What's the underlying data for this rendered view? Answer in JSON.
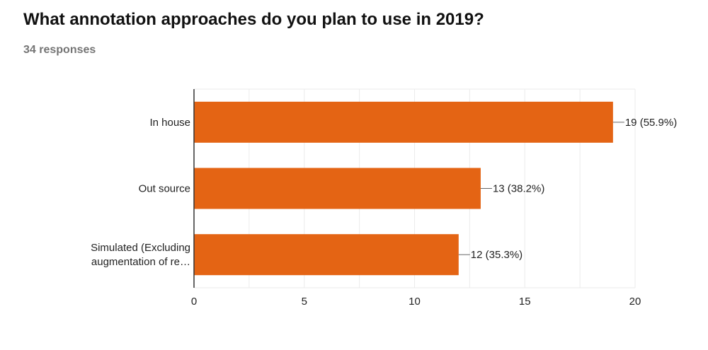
{
  "header": {
    "title": "What annotation approaches do you plan to use in 2019?",
    "responses": "34 responses"
  },
  "chart_data": {
    "type": "bar",
    "orientation": "horizontal",
    "categories": [
      [
        "In house"
      ],
      [
        "Out source"
      ],
      [
        "Simulated (Excluding",
        "augmentation of re…"
      ]
    ],
    "values": [
      19,
      13,
      12
    ],
    "data_labels": [
      "19 (55.9%)",
      "13 (38.2%)",
      "12 (35.3%)"
    ],
    "xlim": [
      0,
      20
    ],
    "x_ticks": [
      0,
      5,
      10,
      15,
      20
    ],
    "grid": true,
    "bar_color": "#e46414"
  }
}
